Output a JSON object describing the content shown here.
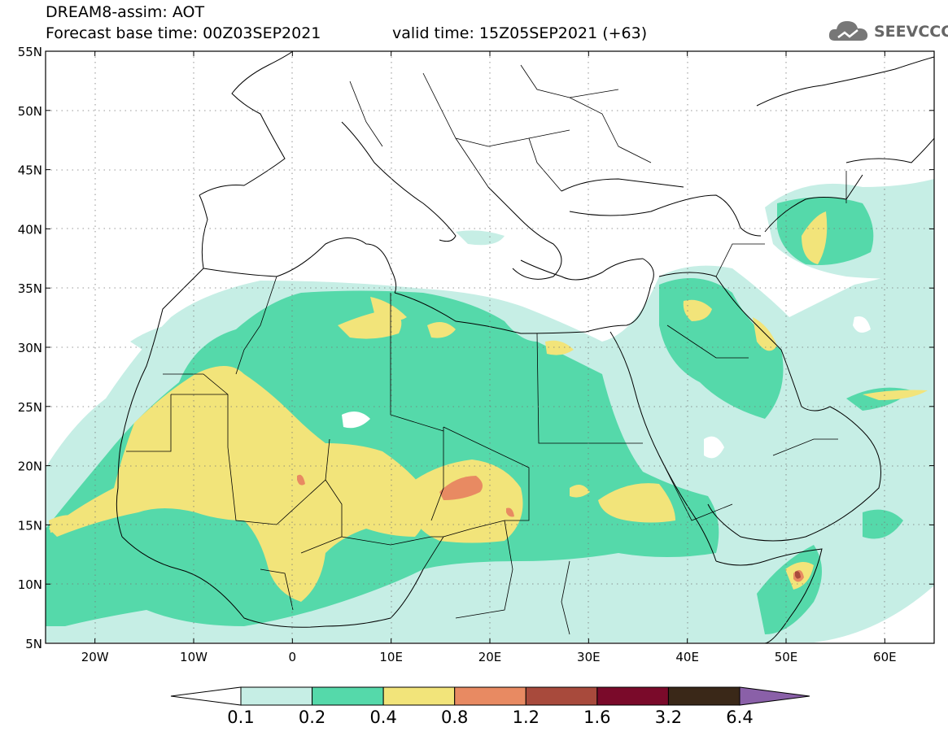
{
  "header": {
    "title": "DREAM8-assim: AOT",
    "base_time": "Forecast base time: 00Z03SEP2021",
    "valid_time": "valid time: 15Z05SEP2021 (+63)",
    "logo_text": "SEEVCCC"
  },
  "map": {
    "lat_labels": [
      "55N",
      "50N",
      "45N",
      "40N",
      "35N",
      "30N",
      "25N",
      "20N",
      "15N",
      "10N",
      "5N"
    ],
    "lon_labels": [
      "20W",
      "10W",
      "0",
      "10E",
      "20E",
      "30E",
      "40E",
      "50E",
      "60E"
    ],
    "lat_range": [
      5,
      55
    ],
    "lon_range": [
      -25,
      65
    ],
    "grid": true
  },
  "colorbar": {
    "labels": [
      "0.1",
      "0.2",
      "0.4",
      "0.8",
      "1.2",
      "1.6",
      "3.2",
      "6.4"
    ],
    "colors": [
      "#ffffff",
      "#c6eee5",
      "#55d9aa",
      "#f2e47a",
      "#e88a62",
      "#a84a3c",
      "#7a0a2a",
      "#3a2818",
      "#8a60a8"
    ]
  }
}
